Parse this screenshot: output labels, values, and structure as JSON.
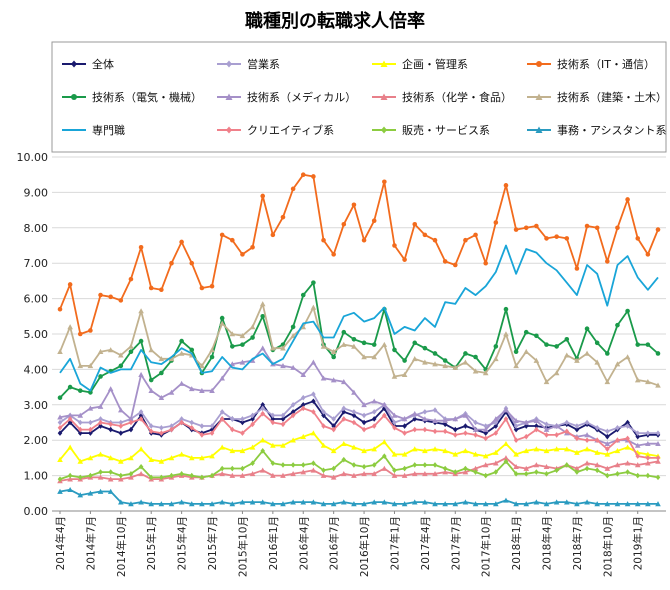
{
  "chart_data": {
    "type": "line",
    "title": "職種別の転職求人倍率",
    "xlabel": "",
    "ylabel": "",
    "ylim": [
      0,
      10
    ],
    "yticks": [
      "0.00",
      "1.00",
      "2.00",
      "3.00",
      "4.00",
      "5.00",
      "6.00",
      "7.00",
      "8.00",
      "9.00",
      "10.00"
    ],
    "grid": true,
    "legend_position": "top",
    "x": [
      "2014年4月",
      "2014年5月",
      "2014年6月",
      "2014年7月",
      "2014年8月",
      "2014年9月",
      "2014年10月",
      "2014年11月",
      "2014年12月",
      "2015年1月",
      "2015年2月",
      "2015年3月",
      "2015年4月",
      "2015年5月",
      "2015年6月",
      "2015年7月",
      "2015年8月",
      "2015年9月",
      "2015年10月",
      "2015年11月",
      "2015年12月",
      "2016年1月",
      "2016年2月",
      "2016年3月",
      "2016年4月",
      "2016年5月",
      "2016年6月",
      "2016年7月",
      "2016年8月",
      "2016年9月",
      "2016年10月",
      "2016年11月",
      "2016年12月",
      "2017年1月",
      "2017年2月",
      "2017年3月",
      "2017年4月",
      "2017年5月",
      "2017年6月",
      "2017年7月",
      "2017年8月",
      "2017年9月",
      "2017年10月",
      "2017年11月",
      "2017年12月",
      "2018年1月",
      "2018年2月",
      "2018年3月",
      "2018年4月",
      "2018年5月",
      "2018年6月",
      "2018年7月",
      "2018年8月",
      "2018年9月",
      "2018年10月",
      "2018年11月",
      "2018年12月",
      "2019年1月",
      "2019年2月",
      "2019年3月"
    ],
    "x_tick_labels": [
      "2014年4月",
      "2014年7月",
      "2014年10月",
      "2015年1月",
      "2015年4月",
      "2015年7月",
      "2015年10月",
      "2016年1月",
      "2016年4月",
      "2016年7月",
      "2016年10月",
      "2017年1月",
      "2017年4月",
      "2017年7月",
      "2017年10月",
      "2018年1月",
      "2018年4月",
      "2018年7月",
      "2018年10月",
      "2019年1月"
    ],
    "series": [
      {
        "name": "全体",
        "color": "#1a1a6e",
        "marker": "diamond",
        "values": [
          2.2,
          2.5,
          2.2,
          2.2,
          2.4,
          2.3,
          2.2,
          2.3,
          2.7,
          2.2,
          2.15,
          2.3,
          2.5,
          2.3,
          2.2,
          2.3,
          2.6,
          2.6,
          2.5,
          2.6,
          3.0,
          2.6,
          2.6,
          2.8,
          3.0,
          3.1,
          2.7,
          2.4,
          2.8,
          2.7,
          2.5,
          2.6,
          2.9,
          2.4,
          2.4,
          2.6,
          2.55,
          2.5,
          2.45,
          2.3,
          2.4,
          2.3,
          2.2,
          2.4,
          2.8,
          2.3,
          2.4,
          2.4,
          2.35,
          2.4,
          2.45,
          2.3,
          2.45,
          2.3,
          2.1,
          2.3,
          2.5,
          2.1,
          2.15,
          2.15
        ]
      },
      {
        "name": "営業系",
        "color": "#a99fd1",
        "marker": "diamond",
        "values": [
          2.5,
          2.7,
          2.5,
          2.5,
          2.6,
          2.5,
          2.5,
          2.6,
          2.8,
          2.4,
          2.35,
          2.4,
          2.6,
          2.5,
          2.4,
          2.4,
          2.8,
          2.6,
          2.6,
          2.7,
          2.9,
          2.7,
          2.7,
          3.0,
          3.2,
          3.3,
          2.8,
          2.6,
          2.9,
          2.8,
          2.7,
          2.8,
          3.0,
          2.5,
          2.6,
          2.7,
          2.8,
          2.85,
          2.6,
          2.6,
          2.75,
          2.5,
          2.4,
          2.5,
          2.9,
          2.4,
          2.5,
          2.6,
          2.45,
          2.4,
          2.5,
          2.4,
          2.5,
          2.35,
          2.25,
          2.35,
          2.4,
          2.2,
          2.2,
          2.2
        ]
      },
      {
        "name": "企画・管理系",
        "color": "#ffff00",
        "marker": "triangle",
        "values": [
          1.45,
          1.8,
          1.4,
          1.5,
          1.6,
          1.5,
          1.4,
          1.5,
          1.75,
          1.45,
          1.4,
          1.5,
          1.6,
          1.5,
          1.5,
          1.55,
          1.8,
          1.7,
          1.7,
          1.8,
          2.0,
          1.85,
          1.85,
          2.0,
          2.1,
          2.2,
          1.85,
          1.7,
          1.9,
          1.8,
          1.7,
          1.75,
          1.95,
          1.6,
          1.6,
          1.75,
          1.7,
          1.75,
          1.7,
          1.6,
          1.7,
          1.6,
          1.55,
          1.65,
          1.9,
          1.6,
          1.7,
          1.75,
          1.7,
          1.75,
          1.75,
          1.65,
          1.75,
          1.65,
          1.6,
          1.7,
          1.8,
          1.65,
          1.6,
          1.55
        ]
      },
      {
        "name": "技術系（IT・通信）",
        "color": "#f26b1d",
        "marker": "circle",
        "values": [
          5.7,
          6.4,
          5.0,
          5.1,
          6.1,
          6.05,
          5.95,
          6.55,
          7.45,
          6.3,
          6.25,
          7.0,
          7.6,
          7.0,
          6.3,
          6.35,
          7.8,
          7.65,
          7.25,
          7.45,
          8.9,
          7.8,
          8.3,
          9.1,
          9.5,
          9.45,
          7.65,
          7.25,
          8.1,
          8.65,
          7.65,
          8.2,
          9.3,
          7.5,
          7.1,
          8.1,
          7.8,
          7.65,
          7.05,
          6.95,
          7.65,
          7.8,
          7.0,
          8.15,
          9.2,
          7.95,
          8.0,
          8.05,
          7.7,
          7.75,
          7.7,
          6.85,
          8.05,
          8.0,
          7.05,
          8.0,
          8.8,
          7.7,
          7.25,
          7.95
        ]
      },
      {
        "name": "技術系（電気・機械）",
        "color": "#1a9a4a",
        "marker": "circle",
        "values": [
          3.2,
          3.5,
          3.4,
          3.35,
          3.8,
          3.95,
          4.1,
          4.5,
          4.8,
          3.7,
          3.9,
          4.25,
          4.8,
          4.55,
          3.9,
          4.35,
          5.45,
          4.65,
          4.7,
          4.9,
          5.5,
          4.55,
          4.7,
          5.2,
          6.1,
          6.45,
          4.7,
          4.35,
          5.05,
          4.85,
          4.75,
          4.7,
          5.7,
          4.55,
          4.25,
          4.75,
          4.6,
          4.45,
          4.25,
          4.05,
          4.45,
          4.35,
          4.0,
          4.65,
          5.7,
          4.5,
          5.05,
          4.95,
          4.7,
          4.65,
          4.85,
          4.3,
          5.15,
          4.75,
          4.45,
          5.25,
          5.65,
          4.7,
          4.7,
          4.45
        ]
      },
      {
        "name": "技術系（メディカル）",
        "color": "#a590c8",
        "marker": "triangle",
        "values": [
          2.65,
          2.7,
          2.7,
          2.9,
          2.95,
          3.45,
          2.85,
          2.6,
          3.85,
          3.4,
          3.2,
          3.35,
          3.6,
          3.45,
          3.4,
          3.4,
          3.75,
          4.15,
          4.2,
          4.25,
          4.6,
          4.15,
          4.1,
          4.05,
          3.85,
          4.2,
          3.75,
          3.7,
          3.65,
          3.35,
          3.0,
          3.1,
          3.0,
          2.7,
          2.6,
          2.75,
          2.6,
          2.55,
          2.55,
          2.6,
          2.7,
          2.3,
          2.3,
          2.6,
          2.85,
          2.55,
          2.5,
          2.55,
          2.3,
          2.4,
          2.2,
          2.1,
          2.15,
          2.0,
          1.9,
          2.0,
          2.0,
          1.85,
          1.9,
          1.9
        ]
      },
      {
        "name": "技術系（化学・食品）",
        "color": "#e8808a",
        "marker": "triangle",
        "values": [
          0.85,
          0.9,
          0.9,
          0.95,
          0.95,
          0.9,
          0.9,
          0.95,
          1.05,
          0.9,
          0.9,
          0.95,
          1.0,
          0.95,
          0.95,
          1.0,
          1.05,
          1.0,
          1.0,
          1.05,
          1.15,
          1.0,
          1.0,
          1.05,
          1.1,
          1.15,
          1.0,
          0.95,
          1.05,
          1.0,
          1.05,
          1.05,
          1.2,
          1.0,
          1.0,
          1.05,
          1.05,
          1.05,
          1.1,
          1.05,
          1.1,
          1.2,
          1.3,
          1.35,
          1.5,
          1.25,
          1.2,
          1.3,
          1.25,
          1.2,
          1.3,
          1.2,
          1.35,
          1.3,
          1.2,
          1.3,
          1.35,
          1.3,
          1.35,
          1.4
        ]
      },
      {
        "name": "技術系（建築・土木）",
        "color": "#c2b28f",
        "marker": "triangle",
        "values": [
          4.5,
          5.2,
          4.1,
          4.1,
          4.5,
          4.55,
          4.4,
          4.65,
          5.65,
          4.55,
          4.3,
          4.3,
          4.45,
          4.4,
          4.1,
          4.55,
          5.3,
          5.0,
          4.95,
          5.2,
          5.85,
          4.6,
          4.6,
          4.95,
          5.2,
          5.75,
          4.65,
          4.5,
          4.7,
          4.65,
          4.35,
          4.35,
          4.7,
          3.8,
          3.85,
          4.3,
          4.2,
          4.15,
          4.1,
          4.05,
          4.2,
          3.95,
          3.9,
          4.3,
          5.0,
          4.1,
          4.5,
          4.25,
          3.65,
          3.9,
          4.4,
          4.25,
          4.45,
          4.2,
          3.65,
          4.15,
          4.35,
          3.7,
          3.65,
          3.55
        ]
      },
      {
        "name": "専門職",
        "color": "#19a5d8",
        "marker": "none",
        "values": [
          3.9,
          4.3,
          3.6,
          3.4,
          4.05,
          3.9,
          4.0,
          4.0,
          4.55,
          4.2,
          4.15,
          4.35,
          4.6,
          4.45,
          3.9,
          3.95,
          4.35,
          4.05,
          4.0,
          4.3,
          4.45,
          4.15,
          4.3,
          4.8,
          5.3,
          5.35,
          4.9,
          4.9,
          5.5,
          5.6,
          5.35,
          5.45,
          5.75,
          5.0,
          5.2,
          5.1,
          5.45,
          5.2,
          5.9,
          5.85,
          6.3,
          6.1,
          6.35,
          6.75,
          7.5,
          6.7,
          7.4,
          7.3,
          7.0,
          6.8,
          6.45,
          6.1,
          6.95,
          6.7,
          5.8,
          6.95,
          7.2,
          6.6,
          6.25,
          6.6
        ]
      },
      {
        "name": "クリエイティブ系",
        "color": "#f0808a",
        "marker": "diamond",
        "values": [
          2.35,
          2.6,
          2.3,
          2.3,
          2.5,
          2.45,
          2.4,
          2.5,
          2.6,
          2.25,
          2.2,
          2.3,
          2.5,
          2.35,
          2.15,
          2.2,
          2.6,
          2.3,
          2.2,
          2.45,
          2.75,
          2.5,
          2.45,
          2.7,
          2.9,
          2.8,
          2.4,
          2.3,
          2.6,
          2.5,
          2.3,
          2.4,
          2.7,
          2.35,
          2.2,
          2.3,
          2.3,
          2.25,
          2.25,
          2.15,
          2.2,
          2.15,
          2.05,
          2.2,
          2.6,
          2.0,
          2.1,
          2.3,
          2.15,
          2.15,
          2.25,
          2.05,
          2.0,
          2.0,
          1.75,
          2.0,
          2.05,
          1.55,
          1.5,
          1.5
        ]
      },
      {
        "name": "販売・サービス系",
        "color": "#8ccc40",
        "marker": "diamond",
        "values": [
          0.9,
          1.0,
          0.95,
          1.0,
          1.1,
          1.1,
          1.0,
          1.05,
          1.25,
          0.95,
          0.95,
          1.0,
          1.05,
          1.0,
          0.95,
          1.0,
          1.2,
          1.2,
          1.2,
          1.35,
          1.7,
          1.35,
          1.3,
          1.3,
          1.3,
          1.35,
          1.15,
          1.2,
          1.45,
          1.3,
          1.25,
          1.3,
          1.55,
          1.15,
          1.2,
          1.3,
          1.3,
          1.3,
          1.2,
          1.1,
          1.2,
          1.1,
          1.0,
          1.1,
          1.4,
          1.05,
          1.05,
          1.1,
          1.05,
          1.15,
          1.3,
          1.1,
          1.2,
          1.15,
          1.0,
          1.05,
          1.1,
          1.0,
          1.0,
          0.95
        ]
      },
      {
        "name": "事務・アシスタント系",
        "color": "#2a9bc0",
        "marker": "triangle",
        "values": [
          0.55,
          0.6,
          0.45,
          0.5,
          0.55,
          0.55,
          0.25,
          0.2,
          0.25,
          0.2,
          0.2,
          0.2,
          0.25,
          0.2,
          0.2,
          0.2,
          0.25,
          0.2,
          0.25,
          0.25,
          0.25,
          0.2,
          0.2,
          0.25,
          0.25,
          0.25,
          0.2,
          0.2,
          0.25,
          0.2,
          0.2,
          0.25,
          0.25,
          0.2,
          0.2,
          0.25,
          0.25,
          0.2,
          0.2,
          0.2,
          0.25,
          0.2,
          0.2,
          0.2,
          0.3,
          0.2,
          0.2,
          0.25,
          0.2,
          0.25,
          0.25,
          0.2,
          0.25,
          0.2,
          0.2,
          0.2,
          0.2,
          0.2,
          0.2,
          0.2
        ]
      }
    ]
  }
}
